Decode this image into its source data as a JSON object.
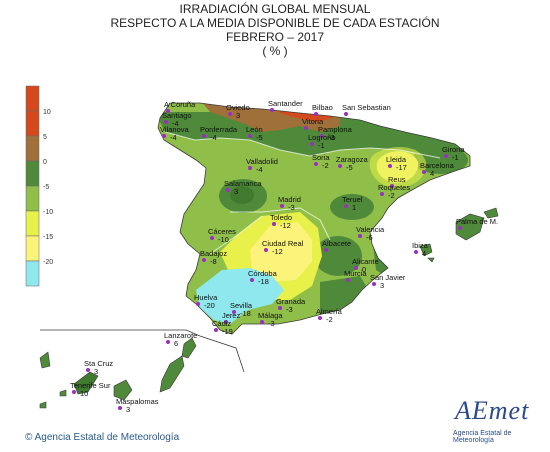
{
  "title": {
    "line1": "IRRADIACIÓN GLOBAL MENSUAL",
    "line2": "RESPECTO A LA MEDIA DISPONIBLE DE CADA ESTACIÓN",
    "line3": "FEBRERO – 2017",
    "line4": "( % )"
  },
  "legend": {
    "bins": [
      {
        "label": "10",
        "color": "#d44a1c"
      },
      {
        "label": "5",
        "color": "#a0703a"
      },
      {
        "label": "0",
        "color": "#4f8a3a"
      },
      {
        "label": "-5",
        "color": "#8fbf48"
      },
      {
        "label": "-10",
        "color": "#e8f04a"
      },
      {
        "label": "-15",
        "color": "#fbf37a"
      },
      {
        "label": "-20",
        "color": "#8ee8ee"
      }
    ],
    "top_color": "#d44a1c"
  },
  "stations": [
    {
      "name": "A Coruña",
      "value": ""
    },
    {
      "name": "Santiago",
      "value": "-4"
    },
    {
      "name": "Oviedo",
      "value": "3"
    },
    {
      "name": "Santander",
      "value": ""
    },
    {
      "name": "Bilbao",
      "value": ""
    },
    {
      "name": "San Sebastian",
      "value": ""
    },
    {
      "name": "Vilanova",
      "value": "-4"
    },
    {
      "name": "Ponferrada",
      "value": "-4"
    },
    {
      "name": "León",
      "value": "-5"
    },
    {
      "name": "Vitoria",
      "value": ""
    },
    {
      "name": "Pamplona",
      "value": "-3"
    },
    {
      "name": "Logroño",
      "value": "-1"
    },
    {
      "name": "Girona",
      "value": "-1"
    },
    {
      "name": "Valladolid",
      "value": "-4"
    },
    {
      "name": "Soria",
      "value": "-2"
    },
    {
      "name": "Zaragoza",
      "value": "-5"
    },
    {
      "name": "Lleida",
      "value": "-17"
    },
    {
      "name": "Barcelona",
      "value": "4"
    },
    {
      "name": "Salamanca",
      "value": "3"
    },
    {
      "name": "Reus",
      "value": ""
    },
    {
      "name": "Roquetes",
      "value": "-2"
    },
    {
      "name": "Madrid",
      "value": "-3"
    },
    {
      "name": "Teruel",
      "value": "1"
    },
    {
      "name": "Palma de M.",
      "value": ""
    },
    {
      "name": "Cáceres",
      "value": "-10"
    },
    {
      "name": "Toledo",
      "value": "-12"
    },
    {
      "name": "Valencia",
      "value": "-6"
    },
    {
      "name": "Ciudad Real",
      "value": "-12"
    },
    {
      "name": "Albacete",
      "value": ""
    },
    {
      "name": "Ibiza",
      "value": "4"
    },
    {
      "name": "Badajoz",
      "value": "-8"
    },
    {
      "name": "Alicante",
      "value": "0"
    },
    {
      "name": "Murcia",
      "value": ""
    },
    {
      "name": "San Javier",
      "value": "3"
    },
    {
      "name": "Córdoba",
      "value": "-18"
    },
    {
      "name": "Huelva",
      "value": "-20"
    },
    {
      "name": "Granada",
      "value": "-3"
    },
    {
      "name": "Almería",
      "value": "-2"
    },
    {
      "name": "Sevilla",
      "value": "-18"
    },
    {
      "name": "Málaga",
      "value": "-3"
    },
    {
      "name": "Jerez",
      "value": ""
    },
    {
      "name": "Cádiz",
      "value": "-19"
    },
    {
      "name": "Lanzarote",
      "value": "6"
    },
    {
      "name": "Sta Cruz",
      "value": "3"
    },
    {
      "name": "Tenerife Sur",
      "value": "10"
    },
    {
      "name": "Maspalomas",
      "value": "3"
    }
  ],
  "footer": {
    "agency": "Agencia Estatal de Meteorología",
    "copyright_symbol": "©"
  },
  "logo": {
    "word": "AEmet",
    "subtitle": "Agencia Estatal de Meteorología"
  },
  "colors": {
    "station_dot": "#9a2fbf",
    "text": "#222222",
    "coast": "#3a3a3a"
  }
}
